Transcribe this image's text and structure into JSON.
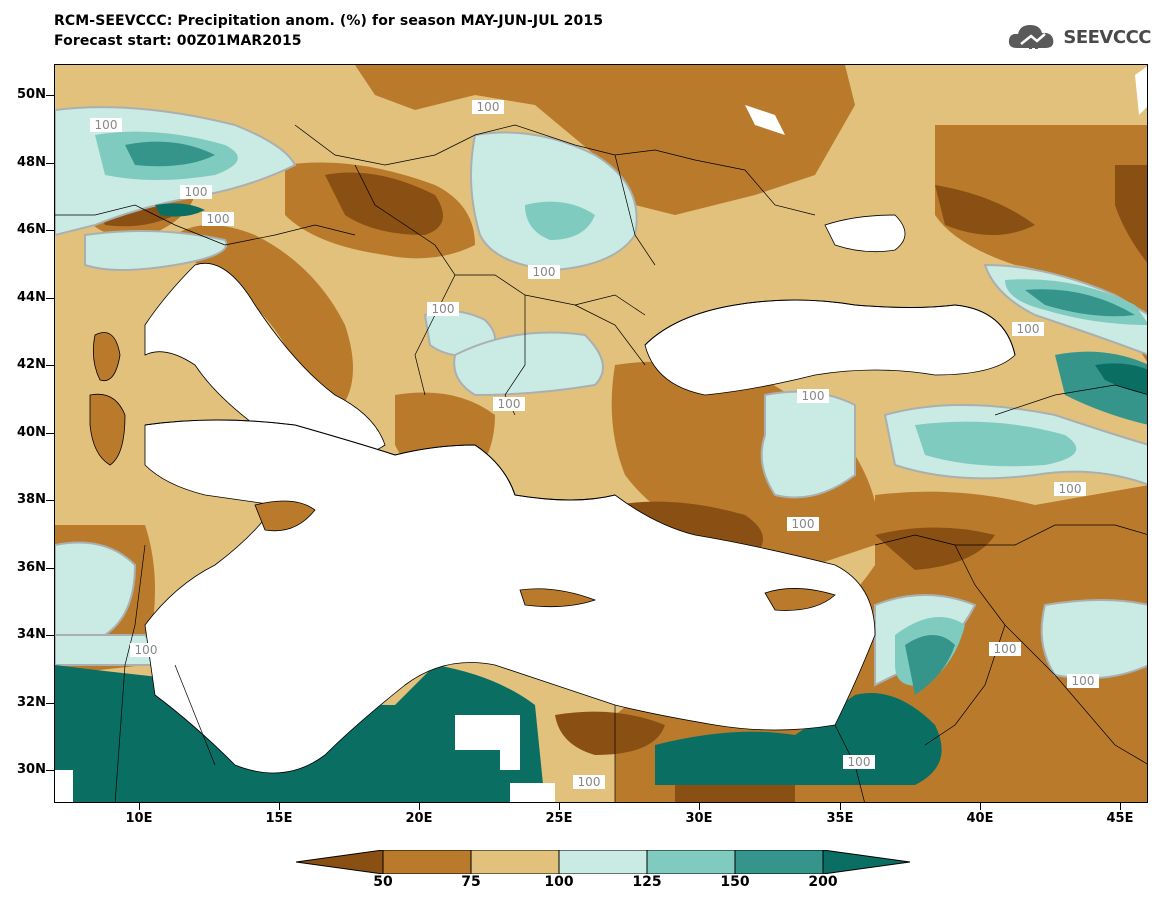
{
  "title": {
    "line1": "RCM-SEEVCCC: Precipitation anom. (%) for season MAY-JUN-JUL 2015",
    "line2": "Forecast start: 00Z01MAR2015"
  },
  "logo": {
    "text": "SEEVCCC",
    "icon": "cloud-icon"
  },
  "map": {
    "latitude_labels": [
      "50N",
      "48N",
      "46N",
      "44N",
      "42N",
      "40N",
      "38N",
      "36N",
      "34N",
      "32N",
      "30N"
    ],
    "longitude_labels": [
      "10E",
      "15E",
      "20E",
      "25E",
      "30E",
      "35E",
      "40E",
      "45E"
    ],
    "contour_label": "100"
  },
  "legend": {
    "labels": [
      "50",
      "75",
      "100",
      "125",
      "150",
      "200"
    ],
    "colors": [
      "#8a4f12",
      "#b97a2c",
      "#e2c17c",
      "#c9ebe3",
      "#7fcbbf",
      "#35958b",
      "#0b6e63"
    ]
  }
}
